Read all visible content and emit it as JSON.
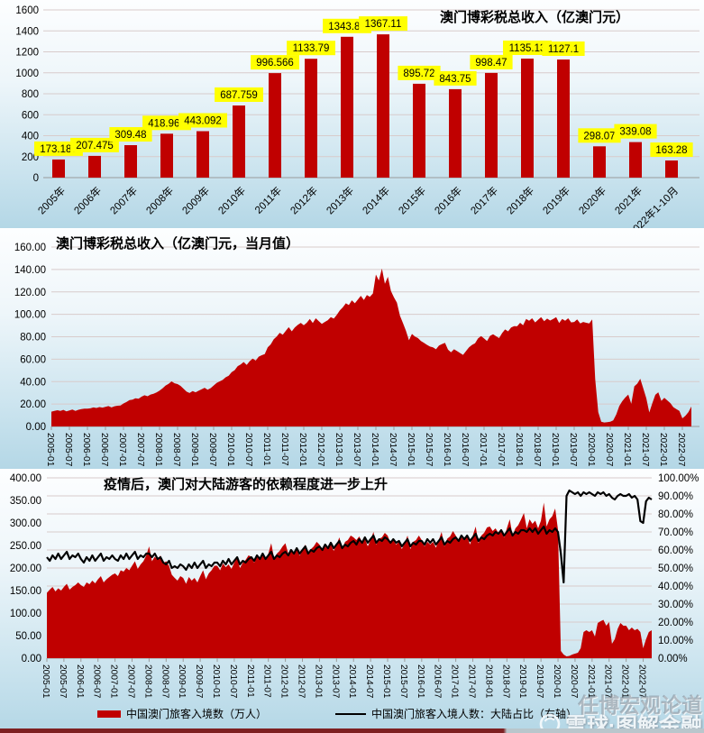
{
  "page": {
    "watermark_line1": "任博宏观论道",
    "watermark_line2": "雪球·图解金融"
  },
  "chart_data": [
    {
      "type": "bar",
      "title": "澳门博彩税总收入（亿澳门元）",
      "categories": [
        "2005年",
        "2006年",
        "2007年",
        "2008年",
        "2009年",
        "2010年",
        "2011年",
        "2012年",
        "2013年",
        "2014年",
        "2015年",
        "2016年",
        "2017年",
        "2018年",
        "2019年",
        "2020年",
        "2021年",
        "2022年1-10月"
      ],
      "values": [
        173.187,
        207.475,
        309.48,
        418.965,
        443.092,
        687.759,
        996.566,
        1133.79,
        1343.81,
        1367.11,
        895.72,
        843.75,
        998.47,
        1135.13,
        1127.1,
        298.07,
        339.08,
        163.28
      ],
      "labels": [
        "173.187",
        "207.475",
        "309.48",
        "418.965",
        "443.092",
        "687.759",
        "996.566",
        "1133.79",
        "1343.81",
        "1367.11",
        "895.72",
        "843.75",
        "998.47",
        "1135.13",
        "1127.1",
        "298.07",
        "339.08",
        "163.28"
      ],
      "ylim": [
        0,
        1600
      ],
      "ytick": 200,
      "bar_color": "#C00000",
      "label_bg": "#FFFF00",
      "grid": true,
      "legend_position": "none"
    },
    {
      "type": "area",
      "title": "澳门博彩税总收入（亿澳门元，当月值）",
      "x_start": "2005-01",
      "x_end": "2022-10",
      "x_ticks": [
        "2005-01",
        "2005-07",
        "2006-01",
        "2006-07",
        "2007-01",
        "2007-07",
        "2008-01",
        "2008-07",
        "2009-01",
        "2009-07",
        "2010-01",
        "2010-07",
        "2011-01",
        "2011-07",
        "2012-01",
        "2012-07",
        "2013-01",
        "2013-07",
        "2014-01",
        "2014-07",
        "2015-01",
        "2015-07",
        "2016-01",
        "2016-07",
        "2017-01",
        "2017-07",
        "2018-01",
        "2018-07",
        "2019-01",
        "2019-07",
        "2020-01",
        "2020-07",
        "2021-01",
        "2021-07",
        "2022-01",
        "2022-07"
      ],
      "ylim": [
        0,
        160
      ],
      "ytick": 20,
      "area_color": "#C00000",
      "grid": true,
      "legend_position": "none",
      "values": [
        13.2,
        13.8,
        14.5,
        13.9,
        14.8,
        13.5,
        14.2,
        15.1,
        13.8,
        14.9,
        15.5,
        15.9,
        15.8,
        16.2,
        17.0,
        16.5,
        17.3,
        16.8,
        17.5,
        18.2,
        17.0,
        18.0,
        18.5,
        18.7,
        20.5,
        21.8,
        23.5,
        24.0,
        25.2,
        24.8,
        26.5,
        27.8,
        26.9,
        28.5,
        29.2,
        30.3,
        32.0,
        34.0,
        36.5,
        38.0,
        40.2,
        38.5,
        37.8,
        36.2,
        33.5,
        31.0,
        29.8,
        31.5,
        30.5,
        31.8,
        33.2,
        34.5,
        32.8,
        34.2,
        36.5,
        38.8,
        40.2,
        41.5,
        43.8,
        45.2,
        48.5,
        50.2,
        53.8,
        55.2,
        57.5,
        54.8,
        58.2,
        60.5,
        58.8,
        62.2,
        63.5,
        64.6,
        70.5,
        73.2,
        77.8,
        80.2,
        83.5,
        81.8,
        85.2,
        88.5,
        84.8,
        88.2,
        90.5,
        92.4,
        90.2,
        92.5,
        95.8,
        92.2,
        96.5,
        93.8,
        91.5,
        93.2,
        94.8,
        97.5,
        96.2,
        99.6,
        103.5,
        106.2,
        109.8,
        108.2,
        112.5,
        109.8,
        113.2,
        116.5,
        112.8,
        117.2,
        115.5,
        118.6,
        135.5,
        130.2,
        140.8,
        127.2,
        133.5,
        120.8,
        115.2,
        110.5,
        98.8,
        92.2,
        85.5,
        76.9,
        82.5,
        80.2,
        78.8,
        76.2,
        74.5,
        72.8,
        71.2,
        70.5,
        68.8,
        72.2,
        73.5,
        74.5,
        68.5,
        66.2,
        68.8,
        67.2,
        65.5,
        63.8,
        67.2,
        70.5,
        72.8,
        74.2,
        78.5,
        80.6,
        78.5,
        76.2,
        80.8,
        82.2,
        80.5,
        78.8,
        83.2,
        86.5,
        84.8,
        88.2,
        89.5,
        89.3,
        92.5,
        90.2,
        95.8,
        94.2,
        96.5,
        92.8,
        95.2,
        97.5,
        93.8,
        96.2,
        94.5,
        95.9,
        97.5,
        92.2,
        95.8,
        94.2,
        96.5,
        92.8,
        93.2,
        95.5,
        91.8,
        93.2,
        92.5,
        91.9,
        95.5,
        42.2,
        12.8,
        4.2,
        3.5,
        3.8,
        4.2,
        5.5,
        10.8,
        18.2,
        22.5,
        25.8,
        28.5,
        20.2,
        35.8,
        38.2,
        42.5,
        33.8,
        25.2,
        12.5,
        20.8,
        28.2,
        30.5,
        22.8,
        25.5,
        23.2,
        20.8,
        17.2,
        15.5,
        13.8,
        7.2,
        9.5,
        12.8,
        17.8
      ]
    },
    {
      "type": "combo",
      "title": "疫情后，澳门对大陆游客的依赖程度进一步上升",
      "x_start": "2005-01",
      "x_end": "2022-10",
      "x_ticks": [
        "2005-01",
        "2005-07",
        "2006-01",
        "2006-07",
        "2007-01",
        "2007-07",
        "2008-01",
        "2008-07",
        "2009-01",
        "2009-07",
        "2010-01",
        "2010-07",
        "2011-01",
        "2011-07",
        "2012-01",
        "2012-07",
        "2013-01",
        "2013-07",
        "2014-01",
        "2014-07",
        "2015-01",
        "2015-07",
        "2016-01",
        "2016-07",
        "2017-01",
        "2017-07",
        "2018-01",
        "2018-07",
        "2019-01",
        "2019-07",
        "2020-01",
        "2020-07",
        "2021-01",
        "2021-07",
        "2022-01",
        "2022-07"
      ],
      "left_ylim": [
        0,
        400
      ],
      "left_ytick": 50,
      "right_ylim": [
        0,
        100
      ],
      "right_ytick": 10,
      "grid": true,
      "legend_position": "bottom",
      "legend": [
        "中国澳门旅客入境数（万人）",
        "中国澳门旅客入境人数：大陆占比（右轴）"
      ],
      "series": [
        {
          "name": "中国澳门旅客入境数（万人）",
          "type": "area",
          "axis": "left",
          "color": "#C00000",
          "values": [
            145,
            152,
            158,
            148,
            155,
            150,
            158,
            165,
            152,
            158,
            162,
            168,
            162,
            158,
            168,
            164,
            172,
            166,
            175,
            182,
            168,
            175,
            180,
            185,
            188,
            182,
            195,
            192,
            200,
            195,
            205,
            215,
            198,
            208,
            215,
            228,
            248,
            215,
            225,
            218,
            228,
            210,
            215,
            205,
            185,
            178,
            172,
            182,
            178,
            165,
            180,
            172,
            178,
            168,
            182,
            195,
            175,
            188,
            195,
            205,
            205,
            195,
            210,
            202,
            208,
            198,
            212,
            222,
            200,
            212,
            218,
            228,
            225,
            212,
            228,
            220,
            230,
            218,
            232,
            255,
            222,
            232,
            238,
            248,
            255,
            232,
            240,
            232,
            240,
            228,
            238,
            252,
            230,
            242,
            248,
            258,
            252,
            238,
            248,
            242,
            252,
            238,
            252,
            268,
            242,
            258,
            262,
            272,
            268,
            262,
            270,
            258,
            265,
            248,
            262,
            280,
            252,
            265,
            268,
            278,
            272,
            255,
            262,
            252,
            258,
            242,
            255,
            272,
            242,
            258,
            262,
            272,
            262,
            248,
            258,
            252,
            258,
            245,
            262,
            280,
            248,
            265,
            270,
            282,
            272,
            258,
            268,
            262,
            270,
            252,
            272,
            292,
            255,
            272,
            278,
            290,
            292,
            282,
            288,
            278,
            285,
            268,
            288,
            308,
            272,
            288,
            295,
            308,
            322,
            288,
            308,
            298,
            305,
            288,
            305,
            345,
            292,
            308,
            315,
            332,
            285,
            16,
            8,
            4,
            5,
            8,
            10,
            12,
            22,
            58,
            62,
            58,
            62,
            48,
            78,
            82,
            85,
            72,
            80,
            32,
            42,
            65,
            78,
            72,
            72,
            62,
            68,
            62,
            65,
            58,
            22,
            42,
            58,
            62
          ]
        },
        {
          "name": "中国澳门旅客入境人数：大陆占比（右轴）",
          "type": "line",
          "axis": "right",
          "color": "#000000",
          "values": [
            56,
            54,
            57,
            55,
            58,
            55,
            57,
            59,
            55,
            57,
            56,
            58,
            55,
            53,
            56,
            54,
            57,
            54,
            56,
            58,
            54,
            56,
            55,
            57,
            55,
            54,
            57,
            55,
            58,
            55,
            57,
            59,
            55,
            57,
            56,
            58,
            58,
            56,
            58,
            55,
            56,
            53,
            52,
            54,
            50,
            51,
            50,
            52,
            51,
            49,
            52,
            50,
            53,
            50,
            52,
            54,
            50,
            52,
            51,
            53,
            53,
            51,
            54,
            52,
            55,
            52,
            54,
            56,
            52,
            54,
            53,
            55,
            56,
            54,
            57,
            55,
            58,
            55,
            57,
            59,
            55,
            57,
            56,
            58,
            59,
            57,
            60,
            58,
            61,
            58,
            60,
            62,
            58,
            60,
            59,
            61,
            62,
            60,
            63,
            61,
            64,
            61,
            63,
            65,
            61,
            63,
            62,
            64,
            65,
            63,
            66,
            64,
            67,
            64,
            66,
            68,
            64,
            66,
            65,
            67,
            66,
            64,
            66,
            64,
            65,
            62,
            64,
            66,
            62,
            64,
            63,
            65,
            65,
            63,
            66,
            64,
            66,
            63,
            65,
            67,
            63,
            65,
            64,
            66,
            67,
            65,
            68,
            66,
            68,
            65,
            67,
            69,
            65,
            67,
            66,
            68,
            69,
            68,
            70,
            69,
            71,
            68,
            70,
            72,
            68,
            70,
            69,
            71,
            71,
            70,
            72,
            70,
            72,
            69,
            71,
            73,
            69,
            71,
            70,
            72,
            70,
            58,
            42,
            90,
            93,
            92,
            91,
            92,
            90,
            92,
            91,
            92,
            91,
            90,
            92,
            91,
            92,
            90,
            91,
            89,
            88,
            90,
            91,
            90,
            90,
            91,
            89,
            90,
            88,
            76,
            75,
            87,
            89,
            88
          ]
        }
      ]
    }
  ]
}
